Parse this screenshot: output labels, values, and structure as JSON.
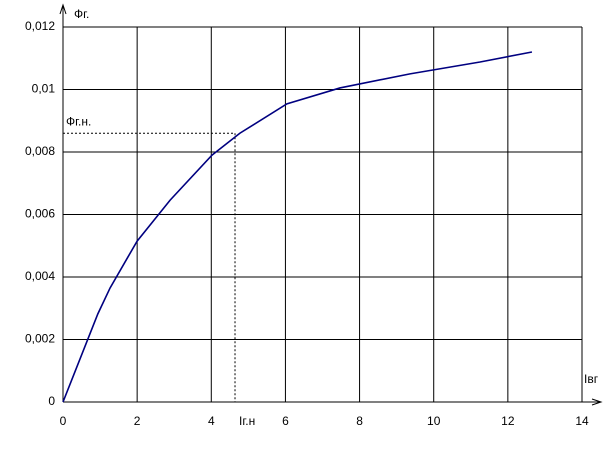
{
  "chart_data": {
    "type": "line",
    "y_label": "Фг.",
    "x_label": "Iвг",
    "x": [
      0,
      0.94,
      1.27,
      2.0,
      2.89,
      4.02,
      4.77,
      6.04,
      7.47,
      9.36,
      11.25,
      12.65
    ],
    "series": [
      {
        "color": "#000080",
        "values": [
          0,
          0.00282,
          0.00365,
          0.00515,
          0.00646,
          0.0079,
          0.0086,
          0.00954,
          0.01005,
          0.0105,
          0.01088,
          0.0112
        ]
      }
    ],
    "xlim": [
      0,
      14
    ],
    "ylim": [
      0,
      0.012
    ],
    "xticks": [
      0,
      2,
      4,
      6,
      8,
      10,
      12,
      14
    ],
    "yticks": [
      0,
      {
        "value": 0.002,
        "label": "0,002"
      },
      {
        "value": 0.004,
        "label": "0,004"
      },
      {
        "value": 0.006,
        "label": "0,006"
      },
      {
        "value": 0.008,
        "label": "0,008"
      },
      {
        "value": 0.01,
        "label": "0,01"
      },
      {
        "value": 0.012,
        "label": "0,012"
      }
    ],
    "grid": true,
    "nominal": {
      "x": 4.64,
      "y": 0.0086,
      "x_label": "Iг.н",
      "y_label": "Фг.н."
    }
  }
}
